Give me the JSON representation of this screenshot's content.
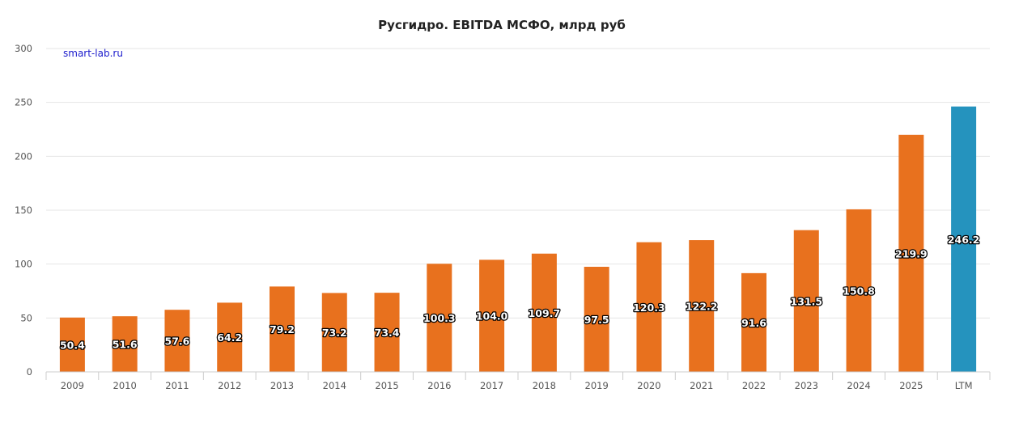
{
  "chart_data": {
    "type": "bar",
    "title": "Русгидро. EBITDA МСФО, млрд руб",
    "watermark": "smart-lab.ru",
    "categories": [
      "2009",
      "2010",
      "2011",
      "2012",
      "2013",
      "2014",
      "2015",
      "2016",
      "2017",
      "2018",
      "2019",
      "2020",
      "2021",
      "2022",
      "2023",
      "2024",
      "2025",
      "LTM"
    ],
    "values": [
      50.4,
      51.6,
      57.6,
      64.2,
      79.2,
      73.2,
      73.4,
      100.3,
      104.0,
      109.7,
      97.5,
      120.3,
      122.2,
      91.6,
      131.5,
      150.8,
      219.9,
      246.2
    ],
    "value_labels": [
      "50.4",
      "51.6",
      "57.6",
      "64.2",
      "79.2",
      "73.2",
      "73.4",
      "100.3",
      "104.0",
      "109.7",
      "97.5",
      "120.3",
      "122.2",
      "91.6",
      "131.5",
      "150.8",
      "219.9",
      "246.2"
    ],
    "y_ticks": [
      "0",
      "50",
      "100",
      "150",
      "200",
      "250",
      "300"
    ],
    "ylim": [
      0,
      300
    ],
    "xlabel": "",
    "ylabel": "",
    "grid": true,
    "legend": "none",
    "colors": {
      "bar": "#E8711E",
      "highlight": "#2593BE",
      "grid": "#e6e6e6",
      "axis": "#cccccc"
    },
    "highlight_category": "LTM"
  }
}
